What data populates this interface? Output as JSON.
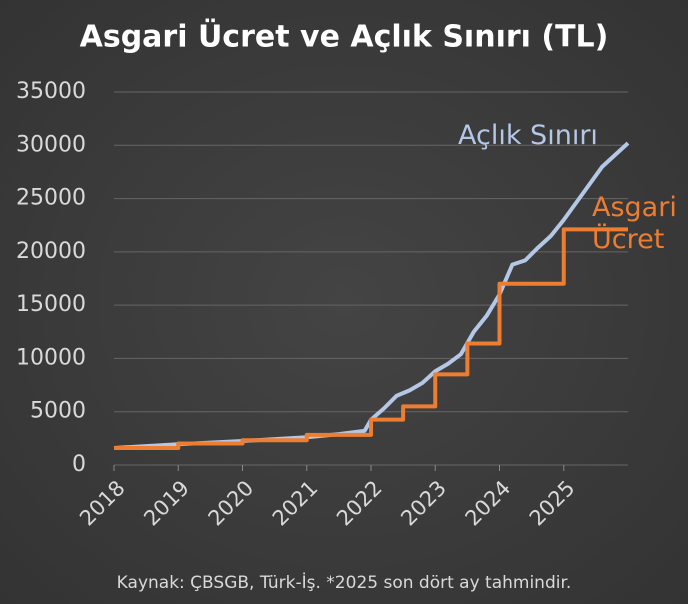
{
  "chart_data": {
    "type": "line",
    "title": "Asgari Ücret ve Açlık Sınırı (TL)",
    "source": "Kaynak: ÇBSGB, Türk-İş. *2025 son dört ay tahmindir.",
    "xlim": [
      2018,
      2026
    ],
    "xticks": [
      2018,
      2019,
      2020,
      2021,
      2022,
      2023,
      2024,
      2025
    ],
    "ylim": [
      0,
      35000
    ],
    "yticks": [
      0,
      5000,
      10000,
      15000,
      20000,
      25000,
      30000,
      35000
    ],
    "grid": true,
    "series": [
      {
        "name": "Açlık Sınırı",
        "color": "#b4c7e7",
        "x": [
          2018,
          2019,
          2020,
          2021,
          2021.5,
          2021.9,
          2022,
          2022.2,
          2022.4,
          2022.6,
          2022.8,
          2023,
          2023.2,
          2023.4,
          2023.6,
          2023.8,
          2024,
          2024.2,
          2024.4,
          2024.6,
          2024.8,
          2025,
          2025.3,
          2025.6,
          2026
        ],
        "values": [
          1600,
          1950,
          2250,
          2600,
          2900,
          3200,
          4250,
          5300,
          6500,
          7000,
          7700,
          8800,
          9500,
          10400,
          12500,
          14000,
          16000,
          18800,
          19200,
          20400,
          21500,
          23000,
          25500,
          28000,
          30200
        ]
      },
      {
        "name": "Asgari Ücret",
        "color": "#ed7d31",
        "x": [
          2018,
          2019,
          2019,
          2020,
          2020,
          2021,
          2021,
          2022,
          2022,
          2022.5,
          2022.5,
          2023,
          2023,
          2023.5,
          2023.5,
          2024,
          2024,
          2025,
          2025,
          2026
        ],
        "values": [
          1600,
          1600,
          2020,
          2020,
          2325,
          2325,
          2826,
          2826,
          4253,
          4253,
          5500,
          5500,
          8507,
          8507,
          11402,
          11402,
          17002,
          17002,
          22104,
          22104
        ]
      }
    ]
  }
}
